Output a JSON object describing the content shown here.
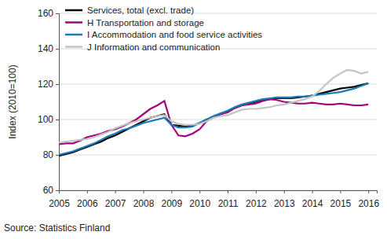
{
  "chart_data": {
    "type": "line",
    "y_label": "Index (2010=100)",
    "source": "Source: Statistics Finland",
    "x": [
      2005,
      2005.25,
      2005.5,
      2005.75,
      2006,
      2006.25,
      2006.5,
      2006.75,
      2007,
      2007.25,
      2007.5,
      2007.75,
      2008,
      2008.25,
      2008.5,
      2008.75,
      2009,
      2009.25,
      2009.5,
      2009.75,
      2010,
      2010.25,
      2010.5,
      2010.75,
      2011,
      2011.25,
      2011.5,
      2011.75,
      2012,
      2012.25,
      2012.5,
      2012.75,
      2013,
      2013.25,
      2013.5,
      2013.75,
      2014,
      2014.25,
      2014.5,
      2014.75,
      2015,
      2015.25,
      2015.5,
      2015.75,
      2016
    ],
    "series": [
      {
        "name": "Services, total (excl. trade)",
        "color": "#000000",
        "values": [
          79.5,
          80.5,
          81.5,
          83,
          84.5,
          86,
          87.5,
          89.5,
          91,
          93,
          95,
          97,
          99,
          101,
          102,
          103,
          97,
          96.5,
          96,
          96.5,
          98,
          100,
          101.5,
          103,
          104.5,
          106.5,
          108,
          109,
          110,
          111,
          111.5,
          112,
          112,
          112,
          112.5,
          113,
          113.5,
          114.5,
          115.5,
          116.5,
          117.5,
          118,
          118.5,
          119.5,
          120.5
        ]
      },
      {
        "name": "H Transportation and storage",
        "color": "#a0057e",
        "values": [
          86,
          86.5,
          86.5,
          88,
          90,
          91,
          92,
          93.5,
          94.5,
          96,
          98,
          100,
          103,
          106,
          108,
          110.5,
          97,
          91,
          90.5,
          92,
          94.5,
          99,
          101.5,
          103,
          104,
          106.5,
          108,
          108.5,
          109,
          110.5,
          111.5,
          111,
          110,
          109.5,
          109,
          109,
          109.5,
          109,
          108.5,
          108.5,
          109,
          108.5,
          108,
          108,
          108.5
        ]
      },
      {
        "name": "I Accommodation and food service activities",
        "color": "#1a7ab8",
        "values": [
          80,
          81,
          82,
          83.5,
          85,
          86.5,
          88.5,
          90.5,
          92,
          94,
          95,
          96.5,
          98,
          99,
          100,
          101,
          97,
          95.5,
          95.5,
          96,
          98,
          100,
          102,
          103.5,
          105,
          107,
          108.5,
          109.5,
          110.5,
          111.5,
          112,
          112.5,
          112.5,
          112.5,
          113,
          113,
          113.5,
          114,
          114.5,
          115,
          115.5,
          116.5,
          117.5,
          119,
          120.5
        ]
      },
      {
        "name": "J Information and communication",
        "color": "#c3c3c3",
        "values": [
          87,
          87.5,
          88,
          88.5,
          89,
          90,
          91.5,
          93,
          95,
          96.5,
          98,
          99,
          100,
          101,
          102,
          102.5,
          99,
          97.5,
          97,
          97,
          97.5,
          99,
          101,
          102,
          102.5,
          104,
          105.5,
          106,
          106,
          106.5,
          107,
          108,
          108.5,
          109.5,
          110.5,
          111.5,
          113,
          116,
          120,
          123.5,
          126,
          128,
          127.5,
          126,
          127
        ]
      }
    ],
    "xlim": [
      2005,
      2016.3
    ],
    "xticks": [
      2005,
      2006,
      2007,
      2008,
      2009,
      2010,
      2011,
      2012,
      2013,
      2014,
      2015,
      2016
    ],
    "ylim": [
      60,
      160
    ],
    "yticks": [
      60,
      80,
      100,
      120,
      140,
      160
    ],
    "grid": true,
    "legend": "top-left"
  }
}
